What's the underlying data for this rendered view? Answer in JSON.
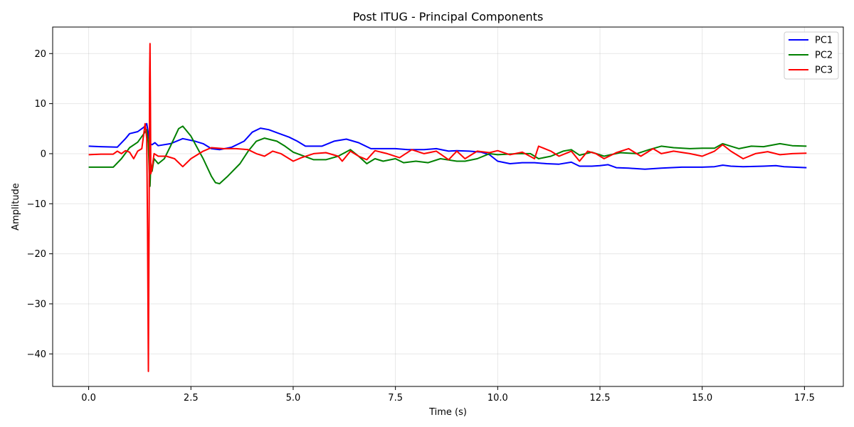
{
  "chart_data": {
    "type": "line",
    "title": "Post ITUG - Principal Components",
    "xlabel": "Time (s)",
    "ylabel": "Amplitude",
    "xlim": [
      -0.88,
      18.45
    ],
    "ylim": [
      -46.5,
      25.3
    ],
    "x_ticks": [
      0.0,
      2.5,
      5.0,
      7.5,
      10.0,
      12.5,
      15.0,
      17.5
    ],
    "x_tick_labels": [
      "0.0",
      "2.5",
      "5.0",
      "7.5",
      "10.0",
      "12.5",
      "15.0",
      "17.5"
    ],
    "y_ticks": [
      20,
      10,
      0,
      -10,
      -20,
      -30,
      -40
    ],
    "y_tick_labels": [
      "20",
      "10",
      "0",
      "−10",
      "−20",
      "−30",
      "−40"
    ],
    "grid": true,
    "legend_position": "top-right",
    "series": [
      {
        "name": "PC1",
        "color": "#0000ff",
        "points": [
          [
            0,
            1.5
          ],
          [
            0.3,
            1.4
          ],
          [
            0.7,
            1.3
          ],
          [
            0.9,
            3
          ],
          [
            1.0,
            4
          ],
          [
            1.2,
            4.4
          ],
          [
            1.35,
            5.3
          ],
          [
            1.42,
            6
          ],
          [
            1.48,
            3
          ],
          [
            1.5,
            2
          ],
          [
            1.55,
            1.8
          ],
          [
            1.62,
            2.2
          ],
          [
            1.7,
            1.6
          ],
          [
            2.0,
            2
          ],
          [
            2.3,
            3
          ],
          [
            2.6,
            2.5
          ],
          [
            2.8,
            2
          ],
          [
            3.0,
            1
          ],
          [
            3.2,
            0.8
          ],
          [
            3.5,
            1.3
          ],
          [
            3.8,
            2.5
          ],
          [
            4.0,
            4.3
          ],
          [
            4.2,
            5.1
          ],
          [
            4.4,
            4.8
          ],
          [
            4.6,
            4.2
          ],
          [
            4.9,
            3.3
          ],
          [
            5.1,
            2.5
          ],
          [
            5.3,
            1.5
          ],
          [
            5.7,
            1.5
          ],
          [
            6.0,
            2.5
          ],
          [
            6.3,
            2.9
          ],
          [
            6.6,
            2.2
          ],
          [
            6.9,
            1
          ],
          [
            7.2,
            1
          ],
          [
            7.5,
            1
          ],
          [
            7.8,
            0.8
          ],
          [
            8.2,
            0.8
          ],
          [
            8.5,
            1
          ],
          [
            8.8,
            0.5
          ],
          [
            9.0,
            0.6
          ],
          [
            9.3,
            0.5
          ],
          [
            9.6,
            0.3
          ],
          [
            9.8,
            -0.2
          ],
          [
            10.0,
            -1.5
          ],
          [
            10.3,
            -2
          ],
          [
            10.6,
            -1.8
          ],
          [
            10.9,
            -1.8
          ],
          [
            11.2,
            -2
          ],
          [
            11.5,
            -2.1
          ],
          [
            11.8,
            -1.7
          ],
          [
            12.0,
            -2.5
          ],
          [
            12.3,
            -2.5
          ],
          [
            12.5,
            -2.4
          ],
          [
            12.7,
            -2.2
          ],
          [
            12.9,
            -2.8
          ],
          [
            13.2,
            -2.9
          ],
          [
            13.6,
            -3.1
          ],
          [
            14.0,
            -2.9
          ],
          [
            14.5,
            -2.7
          ],
          [
            15.0,
            -2.7
          ],
          [
            15.3,
            -2.6
          ],
          [
            15.5,
            -2.3
          ],
          [
            15.7,
            -2.5
          ],
          [
            16.0,
            -2.6
          ],
          [
            16.5,
            -2.5
          ],
          [
            16.8,
            -2.4
          ],
          [
            17.0,
            -2.6
          ],
          [
            17.55,
            -2.8
          ]
        ]
      },
      {
        "name": "PC2",
        "color": "#008000",
        "points": [
          [
            0,
            -2.7
          ],
          [
            0.3,
            -2.7
          ],
          [
            0.6,
            -2.7
          ],
          [
            0.8,
            -1
          ],
          [
            1.0,
            1.2
          ],
          [
            1.2,
            2.3
          ],
          [
            1.35,
            4
          ],
          [
            1.42,
            4.8
          ],
          [
            1.46,
            2
          ],
          [
            1.48,
            -3
          ],
          [
            1.5,
            -6.5
          ],
          [
            1.52,
            -2
          ],
          [
            1.55,
            -3.5
          ],
          [
            1.6,
            -1
          ],
          [
            1.7,
            -2
          ],
          [
            1.85,
            -1
          ],
          [
            2.0,
            1.5
          ],
          [
            2.2,
            5
          ],
          [
            2.3,
            5.5
          ],
          [
            2.5,
            3.5
          ],
          [
            2.8,
            -1
          ],
          [
            3.0,
            -4.5
          ],
          [
            3.1,
            -5.8
          ],
          [
            3.2,
            -6
          ],
          [
            3.4,
            -4.5
          ],
          [
            3.7,
            -2
          ],
          [
            3.9,
            0.5
          ],
          [
            4.1,
            2.5
          ],
          [
            4.3,
            3.1
          ],
          [
            4.6,
            2.5
          ],
          [
            4.8,
            1.5
          ],
          [
            5.0,
            0.3
          ],
          [
            5.2,
            -0.3
          ],
          [
            5.5,
            -1.2
          ],
          [
            5.8,
            -1.2
          ],
          [
            6.1,
            -0.5
          ],
          [
            6.4,
            0.8
          ],
          [
            6.6,
            -0.5
          ],
          [
            6.8,
            -2
          ],
          [
            7.0,
            -1
          ],
          [
            7.2,
            -1.5
          ],
          [
            7.5,
            -1
          ],
          [
            7.7,
            -1.8
          ],
          [
            8.0,
            -1.5
          ],
          [
            8.3,
            -1.8
          ],
          [
            8.6,
            -1
          ],
          [
            9.0,
            -1.5
          ],
          [
            9.2,
            -1.5
          ],
          [
            9.5,
            -1
          ],
          [
            9.8,
            0
          ],
          [
            10.0,
            -0.2
          ],
          [
            10.5,
            0
          ],
          [
            10.8,
            0
          ],
          [
            11.0,
            -1
          ],
          [
            11.3,
            -0.5
          ],
          [
            11.6,
            0.5
          ],
          [
            11.8,
            0.8
          ],
          [
            12.0,
            -0.3
          ],
          [
            12.3,
            0.3
          ],
          [
            12.6,
            -0.5
          ],
          [
            13.0,
            0.2
          ],
          [
            13.4,
            0
          ],
          [
            13.7,
            0.8
          ],
          [
            14.0,
            1.5
          ],
          [
            14.3,
            1.2
          ],
          [
            14.7,
            1
          ],
          [
            15.0,
            1.1
          ],
          [
            15.3,
            1.1
          ],
          [
            15.5,
            2
          ],
          [
            15.7,
            1.5
          ],
          [
            15.9,
            1
          ],
          [
            16.2,
            1.5
          ],
          [
            16.5,
            1.4
          ],
          [
            16.9,
            2
          ],
          [
            17.2,
            1.6
          ],
          [
            17.55,
            1.5
          ]
        ]
      },
      {
        "name": "PC3",
        "color": "#ff0000",
        "points": [
          [
            0,
            -0.2
          ],
          [
            0.3,
            -0.1
          ],
          [
            0.6,
            -0.1
          ],
          [
            0.7,
            0.5
          ],
          [
            0.8,
            0
          ],
          [
            0.9,
            0.6
          ],
          [
            1.0,
            0.3
          ],
          [
            1.1,
            -1
          ],
          [
            1.2,
            0.5
          ],
          [
            1.3,
            1
          ],
          [
            1.38,
            6
          ],
          [
            1.42,
            3
          ],
          [
            1.44,
            -15
          ],
          [
            1.46,
            -43.5
          ],
          [
            1.48,
            -10
          ],
          [
            1.49,
            15
          ],
          [
            1.5,
            22
          ],
          [
            1.51,
            10
          ],
          [
            1.52,
            -4
          ],
          [
            1.55,
            -3
          ],
          [
            1.6,
            0
          ],
          [
            1.7,
            -0.5
          ],
          [
            1.9,
            -0.5
          ],
          [
            2.1,
            -1
          ],
          [
            2.3,
            -2.6
          ],
          [
            2.5,
            -1
          ],
          [
            2.8,
            0.5
          ],
          [
            3.0,
            1.2
          ],
          [
            3.3,
            1
          ],
          [
            3.6,
            1
          ],
          [
            3.9,
            0.8
          ],
          [
            4.1,
            0
          ],
          [
            4.3,
            -0.5
          ],
          [
            4.5,
            0.5
          ],
          [
            4.7,
            0
          ],
          [
            5.0,
            -1.5
          ],
          [
            5.2,
            -0.8
          ],
          [
            5.5,
            0
          ],
          [
            5.8,
            0.2
          ],
          [
            6.1,
            -0.5
          ],
          [
            6.2,
            -1.5
          ],
          [
            6.4,
            0.5
          ],
          [
            6.6,
            -0.5
          ],
          [
            6.8,
            -1.2
          ],
          [
            7.0,
            0.6
          ],
          [
            7.3,
            0
          ],
          [
            7.6,
            -0.8
          ],
          [
            7.9,
            0.8
          ],
          [
            8.2,
            0
          ],
          [
            8.5,
            0.5
          ],
          [
            8.8,
            -1.2
          ],
          [
            9.0,
            0.5
          ],
          [
            9.2,
            -1
          ],
          [
            9.5,
            0.5
          ],
          [
            9.8,
            0.2
          ],
          [
            10.0,
            0.6
          ],
          [
            10.3,
            -0.2
          ],
          [
            10.6,
            0.3
          ],
          [
            10.9,
            -1
          ],
          [
            11.0,
            1.5
          ],
          [
            11.3,
            0.5
          ],
          [
            11.5,
            -0.5
          ],
          [
            11.8,
            0.5
          ],
          [
            12.0,
            -1.5
          ],
          [
            12.2,
            0.5
          ],
          [
            12.4,
            0
          ],
          [
            12.6,
            -1
          ],
          [
            12.9,
            0.2
          ],
          [
            13.2,
            1
          ],
          [
            13.5,
            -0.5
          ],
          [
            13.8,
            1
          ],
          [
            14.0,
            0
          ],
          [
            14.3,
            0.5
          ],
          [
            14.7,
            0
          ],
          [
            15.0,
            -0.5
          ],
          [
            15.3,
            0.5
          ],
          [
            15.5,
            1.8
          ],
          [
            15.7,
            0.5
          ],
          [
            16.0,
            -1
          ],
          [
            16.3,
            0
          ],
          [
            16.6,
            0.4
          ],
          [
            16.9,
            -0.2
          ],
          [
            17.2,
            0
          ],
          [
            17.55,
            0.1
          ]
        ]
      }
    ]
  }
}
